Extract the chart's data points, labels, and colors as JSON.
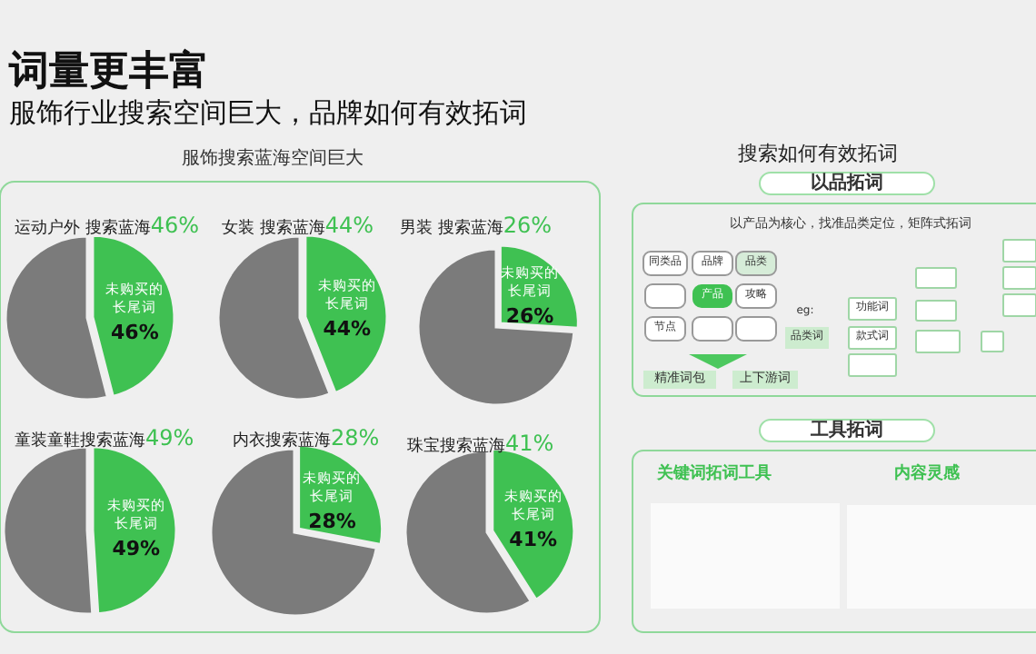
{
  "chart_data": [
    {
      "type": "other",
      "title": "词量更丰富",
      "subtitle": "服饰行业搜索空间巨大，品牌如何有效拓词",
      "annotations": [
        "服饰搜索蓝海空间巨大"
      ]
    },
    {
      "type": "pie",
      "title": "运动户外 搜索蓝海",
      "subtitle": "46%",
      "categories": [
        "未购买的长尾词",
        null
      ],
      "values": [
        46,
        54
      ],
      "colors": [
        "#3fc152",
        "#7b7b7b"
      ],
      "value_labels": [
        "46%",
        null
      ]
    },
    {
      "type": "pie",
      "title": "女装 搜索蓝海",
      "subtitle": "44%",
      "categories": [
        "未购买的长尾词",
        null
      ],
      "values": [
        44,
        56
      ],
      "colors": [
        "#3fc152",
        "#7b7b7b"
      ],
      "value_labels": [
        "44%",
        null
      ]
    },
    {
      "type": "pie",
      "title": "男装 搜索蓝海",
      "subtitle": "26%",
      "categories": [
        "未购买的长尾词",
        null
      ],
      "values": [
        26,
        74
      ],
      "colors": [
        "#3fc152",
        "#7b7b7b"
      ],
      "value_labels": [
        "26%",
        null
      ]
    },
    {
      "type": "pie",
      "title": "童装童鞋搜索蓝海",
      "subtitle": "49%",
      "categories": [
        "未购买的长尾词",
        null
      ],
      "values": [
        49,
        51
      ],
      "colors": [
        "#3fc152",
        "#7b7b7b"
      ],
      "value_labels": [
        "49%",
        null
      ]
    },
    {
      "type": "pie",
      "title": "内衣搜索蓝海",
      "subtitle": "28%",
      "categories": [
        "未购买的长尾词",
        null
      ],
      "values": [
        28,
        72
      ],
      "colors": [
        "#3fc152",
        "#7b7b7b"
      ],
      "value_labels": [
        "28%",
        null
      ]
    },
    {
      "type": "pie",
      "title": "珠宝搜索蓝海",
      "subtitle": "41%",
      "categories": [
        "未购买的长尾词",
        null
      ],
      "values": [
        41,
        59
      ],
      "colors": [
        "#3fc152",
        "#7b7b7b"
      ],
      "value_labels": [
        "41%",
        null
      ]
    },
    {
      "type": "other",
      "title": "搜索如何有效拓词",
      "annotations": [
        "以品拓词",
        "以产品为核心，找准品类定位，矩阵式拓词",
        "同类品",
        "品牌",
        "品类",
        "产品",
        "攻略",
        "节点",
        "eg:",
        "品类词",
        "功能词",
        "款式词",
        "精准词包",
        "上下游词",
        "工具拓词",
        "关键词拓词工具",
        "内容灵感"
      ]
    }
  ]
}
